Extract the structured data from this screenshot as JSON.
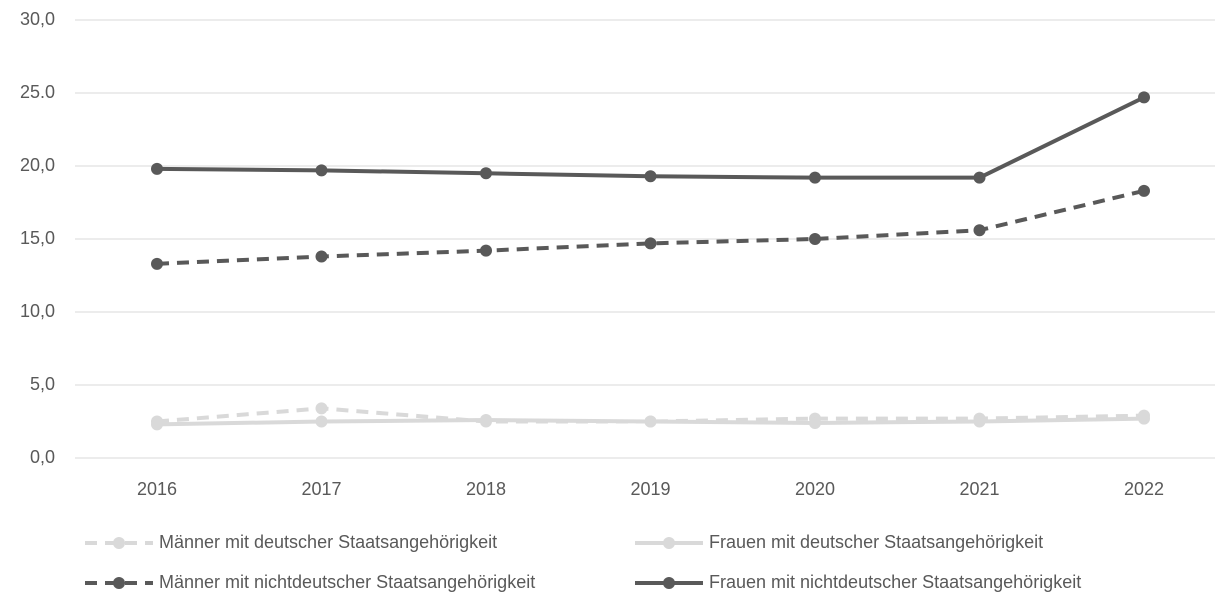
{
  "chart_data": {
    "type": "line",
    "categories": [
      "2016",
      "2017",
      "2018",
      "2019",
      "2020",
      "2021",
      "2022"
    ],
    "series": [
      {
        "name": "Männer mit deutscher Staatsangehörigkeit",
        "color": "#d9d9d9",
        "dashed": true,
        "values": [
          2.5,
          3.4,
          2.5,
          2.5,
          2.7,
          2.7,
          2.9
        ]
      },
      {
        "name": "Frauen mit deutscher Staatsangehörigkeit",
        "color": "#d9d9d9",
        "dashed": false,
        "values": [
          2.3,
          2.5,
          2.6,
          2.5,
          2.4,
          2.5,
          2.7
        ]
      },
      {
        "name": "Männer mit nichtdeutscher Staatsangehörigkeit",
        "color": "#595959",
        "dashed": true,
        "values": [
          13.3,
          13.8,
          14.2,
          14.7,
          15.0,
          15.6,
          18.3
        ]
      },
      {
        "name": "Frauen mit nichtdeutscher Staatsangehörigkeit",
        "color": "#595959",
        "dashed": false,
        "values": [
          19.8,
          19.7,
          19.5,
          19.3,
          19.2,
          19.2,
          24.7
        ]
      }
    ],
    "ylim": [
      0,
      30
    ],
    "yticks": [
      {
        "value": 0,
        "label": "0,0"
      },
      {
        "value": 5,
        "label": "5,0"
      },
      {
        "value": 10,
        "label": "10,0"
      },
      {
        "value": 15,
        "label": "15,0"
      },
      {
        "value": 20,
        "label": "20,0"
      },
      {
        "value": 25,
        "label": "25.0"
      },
      {
        "value": 30,
        "label": "30,0"
      }
    ],
    "grid": true
  }
}
